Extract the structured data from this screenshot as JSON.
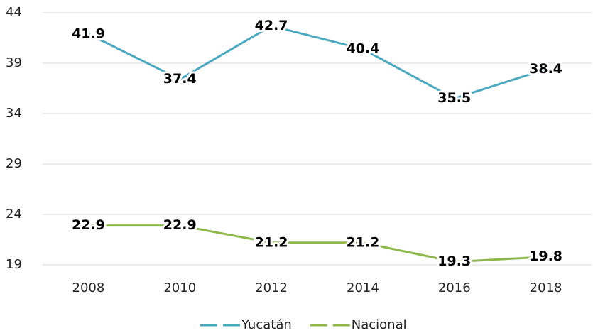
{
  "chart_data": {
    "type": "line",
    "categories": [
      "2008",
      "2010",
      "2012",
      "2014",
      "2016",
      "2018"
    ],
    "series": [
      {
        "name": "Yucatán",
        "color": "#4aa8c0",
        "values": [
          41.9,
          37.4,
          42.7,
          40.4,
          35.5,
          38.4
        ]
      },
      {
        "name": "Nacional",
        "color": "#8db84a",
        "values": [
          22.9,
          22.9,
          21.2,
          21.2,
          19.3,
          19.8
        ]
      }
    ],
    "ylim": [
      19,
      44
    ],
    "yticks": [
      19,
      24,
      29,
      34,
      39,
      44
    ],
    "grid": true,
    "legend": "bottom"
  }
}
